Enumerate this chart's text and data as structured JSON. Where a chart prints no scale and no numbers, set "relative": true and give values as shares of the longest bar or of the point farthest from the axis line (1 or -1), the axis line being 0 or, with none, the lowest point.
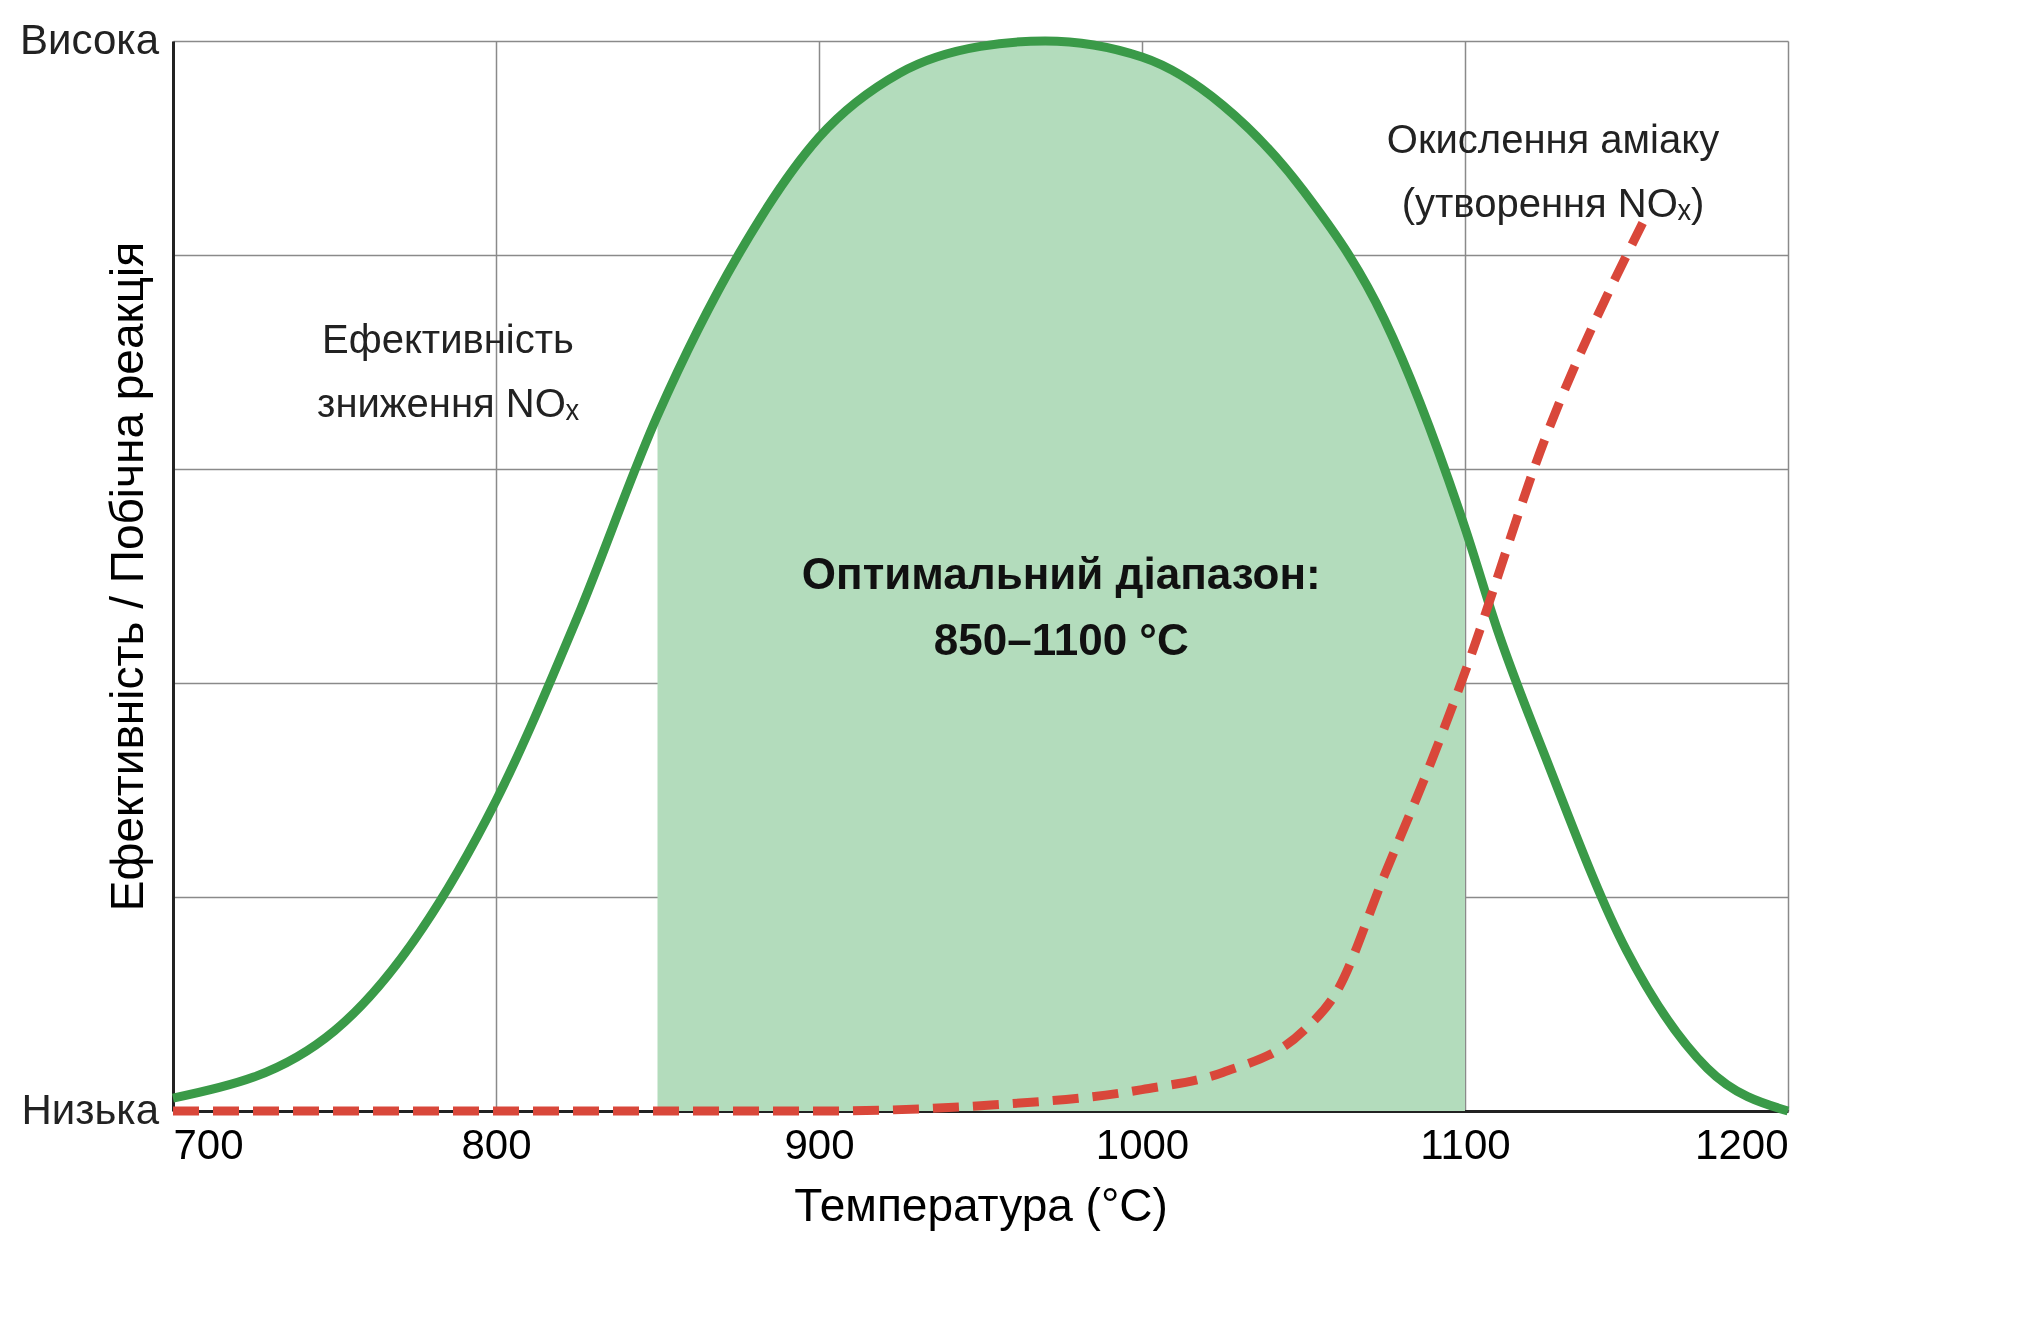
{
  "chart_data": {
    "type": "line",
    "xlabel": "Температура (°C)",
    "ylabel": "Ефективність / Побічна реакція",
    "xlim": [
      700,
      1200
    ],
    "xticks": [
      700,
      800,
      900,
      1000,
      1100,
      1200
    ],
    "relative": true,
    "annotations": [
      "Висока",
      "Низька"
    ],
    "grid": true,
    "marker": "none",
    "series": [
      {
        "name": "Ефективність зниження NOₓ",
        "color": "#3a9a48",
        "line_style": "solid",
        "x": [
          700,
          750,
          800,
          825,
          850,
          875,
          900,
          925,
          950,
          970,
          1000,
          1025,
          1050,
          1075,
          1100,
          1110,
          1125,
          1150,
          1175,
          1200
        ],
        "values": [
          0.012,
          0.075,
          0.29,
          0.46,
          0.65,
          0.8,
          0.91,
          0.97,
          0.995,
          1,
          0.985,
          0.94,
          0.86,
          0.74,
          0.545,
          0.45,
          0.33,
          0.15,
          0.04,
          0
        ]
      },
      {
        "name": "Окислення аміаку (утворення NOₓ)",
        "color": "#d9473a",
        "line_style": "dashed",
        "x": [
          700,
          800,
          900,
          950,
          1000,
          1025,
          1050,
          1060,
          1075,
          1090,
          1100,
          1125,
          1155
        ],
        "values": [
          0,
          0,
          0,
          0.005,
          0.02,
          0.036,
          0.075,
          0.11,
          0.22,
          0.33,
          0.41,
          0.63,
          0.83
        ]
      }
    ],
    "bands": [
      {
        "axis": "x",
        "from": 850,
        "to": 1100,
        "label": "Оптимальний діапазон: 850–1100 °C",
        "color": "#b3dcbc"
      }
    ]
  }
}
